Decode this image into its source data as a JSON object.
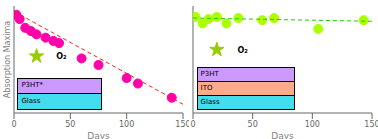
{
  "chart_data": [
    {
      "type": "scatter",
      "xlabel": "Days",
      "ylabel": "Absorption Maxima",
      "xlim": [
        0,
        150
      ],
      "ylim": [
        0.1,
        1.08
      ],
      "xticks": [
        0,
        50,
        100,
        150
      ],
      "yticks": [],
      "tick_labels": "x",
      "grid": false,
      "series": [
        {
          "type": "scatter",
          "marker": "circle",
          "color": "#ff00aa",
          "x": [
            2,
            5,
            10,
            15,
            20,
            28,
            35,
            40,
            60,
            75,
            100,
            110,
            140
          ],
          "values": [
            1.0,
            0.96,
            0.88,
            0.85,
            0.82,
            0.79,
            0.76,
            0.74,
            0.6,
            0.54,
            0.42,
            0.37,
            0.24
          ]
        },
        {
          "type": "line",
          "line_style": "dashed",
          "color": "#ff2222",
          "x": [
            0,
            150
          ],
          "values": [
            1.03,
            0.18
          ]
        },
        {
          "type": "scatter",
          "marker": "star",
          "color": "#99cc00",
          "x": [
            20
          ],
          "values": [
            0.62
          ]
        }
      ],
      "annotations": [
        {
          "text": "O₂",
          "x": 33,
          "y": 0.62
        }
      ],
      "inset_layers": [
        {
          "text": "P3HT*",
          "color": "#cc99ff"
        },
        {
          "text": "Glass",
          "color": "#44ddee"
        }
      ]
    },
    {
      "type": "scatter",
      "xlabel": "Days",
      "xlim": [
        0,
        150
      ],
      "ylim": [
        0.1,
        1.08
      ],
      "xticks": [
        0,
        50,
        100,
        150
      ],
      "yticks": [],
      "tick_labels": "x",
      "grid": false,
      "series": [
        {
          "type": "scatter",
          "marker": "circle",
          "color": "#aaff00",
          "x": [
            2,
            8,
            13,
            20,
            28,
            38,
            58,
            68,
            105,
            143
          ],
          "values": [
            0.98,
            0.92,
            0.96,
            0.98,
            0.92,
            0.97,
            0.95,
            0.97,
            0.87,
            0.95
          ]
        },
        {
          "type": "line",
          "line_style": "dashed",
          "color": "#22cc00",
          "x": [
            0,
            150
          ],
          "values": [
            0.97,
            0.94
          ]
        },
        {
          "type": "scatter",
          "marker": "star",
          "color": "#99cc00",
          "x": [
            20
          ],
          "values": [
            0.68
          ]
        }
      ],
      "annotations": [
        {
          "text": "O₂",
          "x": 33,
          "y": 0.68
        }
      ],
      "inset_layers": [
        {
          "text": "P3HT",
          "color": "#cc99ff"
        },
        {
          "text": "ITO",
          "color": "#ffaa88"
        },
        {
          "text": "Glass",
          "color": "#44ddee"
        }
      ]
    }
  ]
}
